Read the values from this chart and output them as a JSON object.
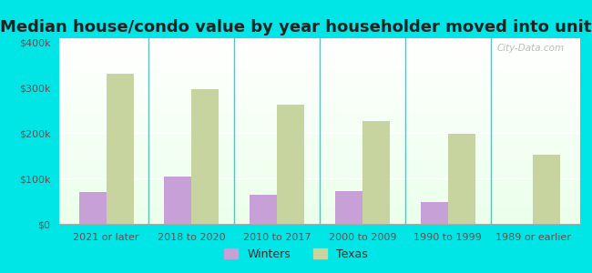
{
  "title": "Median house/condo value by year householder moved into unit",
  "categories": [
    "2021 or later",
    "2018 to 2020",
    "2010 to 2017",
    "2000 to 2009",
    "1990 to 1999",
    "1989 or earlier"
  ],
  "winters_values": [
    70000,
    105000,
    65000,
    72000,
    48000,
    0
  ],
  "texas_values": [
    332000,
    297000,
    263000,
    228000,
    198000,
    152000
  ],
  "winters_color": "#c8a0d8",
  "texas_color": "#c8d4a0",
  "background_color": "#00e5e5",
  "ylabel_ticks": [
    "$0",
    "$100k",
    "$200k",
    "$300k",
    "$400k"
  ],
  "ylabel_values": [
    0,
    100000,
    200000,
    300000,
    400000
  ],
  "ylim": [
    0,
    410000
  ],
  "bar_width": 0.32,
  "title_fontsize": 13,
  "tick_fontsize": 8,
  "legend_labels": [
    "Winters",
    "Texas"
  ],
  "watermark": "City-Data.com"
}
